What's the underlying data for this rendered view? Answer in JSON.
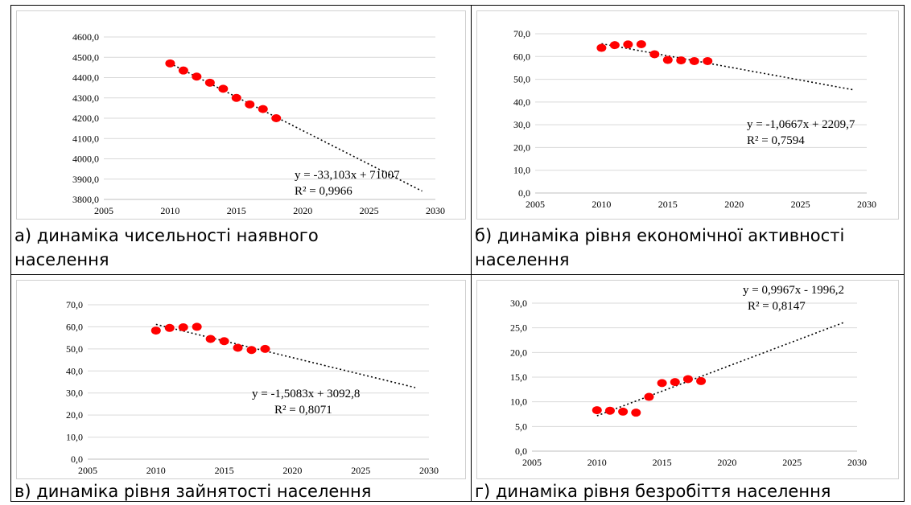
{
  "chart_data": [
    {
      "type": "scatter",
      "x": [
        2010,
        2011,
        2012,
        2013,
        2014,
        2015,
        2016,
        2017,
        2018
      ],
      "y": [
        4470,
        4435,
        4405,
        4375,
        4345,
        4300,
        4268,
        4245,
        4200
      ],
      "trendline": {
        "slope": -33.103,
        "intercept": 71007,
        "x_range": [
          2010,
          2029
        ]
      },
      "equation": "y = -33,103x + 71007",
      "r2": "R² = 0,9966",
      "xlim": [
        2005,
        2030
      ],
      "ylim": [
        3800,
        4600
      ],
      "x_ticks": [
        "2005",
        "2010",
        "2015",
        "2020",
        "2025",
        "2030"
      ],
      "y_ticks": [
        "3800,0",
        "3900,0",
        "4000,0",
        "4100,0",
        "4200,0",
        "4300,0",
        "4400,0",
        "4500,0",
        "4600,0"
      ],
      "marker_color": "#ff0000",
      "grid": "horizontal",
      "caption_line1": "а) динаміка чисельності наявного",
      "caption_line2": "населення"
    },
    {
      "type": "scatter",
      "x": [
        2010,
        2011,
        2012,
        2013,
        2014,
        2015,
        2016,
        2017,
        2018
      ],
      "y": [
        63.8,
        65.0,
        65.3,
        65.4,
        61.0,
        58.5,
        58.3,
        58.0,
        58.0
      ],
      "trendline": {
        "slope": -1.0667,
        "intercept": 2209.7,
        "x_range": [
          2010,
          2029
        ]
      },
      "equation": "y = -1,0667x + 2209,7",
      "r2": "R² = 0,7594",
      "xlim": [
        2005,
        2030
      ],
      "ylim": [
        0,
        70
      ],
      "x_ticks": [
        "2005",
        "2010",
        "2015",
        "2020",
        "2025",
        "2030"
      ],
      "y_ticks": [
        "0,0",
        "10,0",
        "20,0",
        "30,0",
        "40,0",
        "50,0",
        "60,0",
        "70,0"
      ],
      "marker_color": "#ff0000",
      "grid": "horizontal",
      "caption_line1": "б) динаміка рівня економічної активності",
      "caption_line2": "населення"
    },
    {
      "type": "scatter",
      "x": [
        2010,
        2011,
        2012,
        2013,
        2014,
        2015,
        2016,
        2017,
        2018
      ],
      "y": [
        58.3,
        59.5,
        59.8,
        60.0,
        54.5,
        53.5,
        50.5,
        49.5,
        50.0
      ],
      "trendline": {
        "slope": -1.5083,
        "intercept": 3092.8,
        "x_range": [
          2010,
          2029
        ]
      },
      "equation": "y =  -1,5083x + 3092,8",
      "r2": "R² = 0,8071",
      "xlim": [
        2005,
        2030
      ],
      "ylim": [
        0,
        70
      ],
      "x_ticks": [
        "2005",
        "2010",
        "2015",
        "2020",
        "2025",
        "2030"
      ],
      "y_ticks": [
        "0,0",
        "10,0",
        "20,0",
        "30,0",
        "40,0",
        "50,0",
        "60,0",
        "70,0"
      ],
      "marker_color": "#ff0000",
      "grid": "horizontal",
      "caption_line1": "в) динаміка рівня зайнятості населення",
      "caption_line2": ""
    },
    {
      "type": "scatter",
      "x": [
        2010,
        2011,
        2012,
        2013,
        2014,
        2015,
        2016,
        2017,
        2018
      ],
      "y": [
        8.3,
        8.2,
        8.0,
        7.8,
        11.0,
        13.8,
        14.0,
        14.6,
        14.2
      ],
      "trendline": {
        "slope": 0.9967,
        "intercept": -1996.2,
        "x_range": [
          2010,
          2029
        ]
      },
      "equation": "y = 0,9967x - 1996,2",
      "r2": "R² = 0,8147",
      "xlim": [
        2005,
        2030
      ],
      "ylim": [
        0,
        30
      ],
      "x_ticks": [
        "2005",
        "2010",
        "2015",
        "2020",
        "2025",
        "2030"
      ],
      "y_ticks": [
        "0,0",
        "5,0",
        "10,0",
        "15,0",
        "20,0",
        "25,0",
        "30,0"
      ],
      "marker_color": "#ff0000",
      "grid": "horizontal",
      "caption_line1": "г) динаміка рівня безробіття населення",
      "caption_line2": ""
    }
  ]
}
